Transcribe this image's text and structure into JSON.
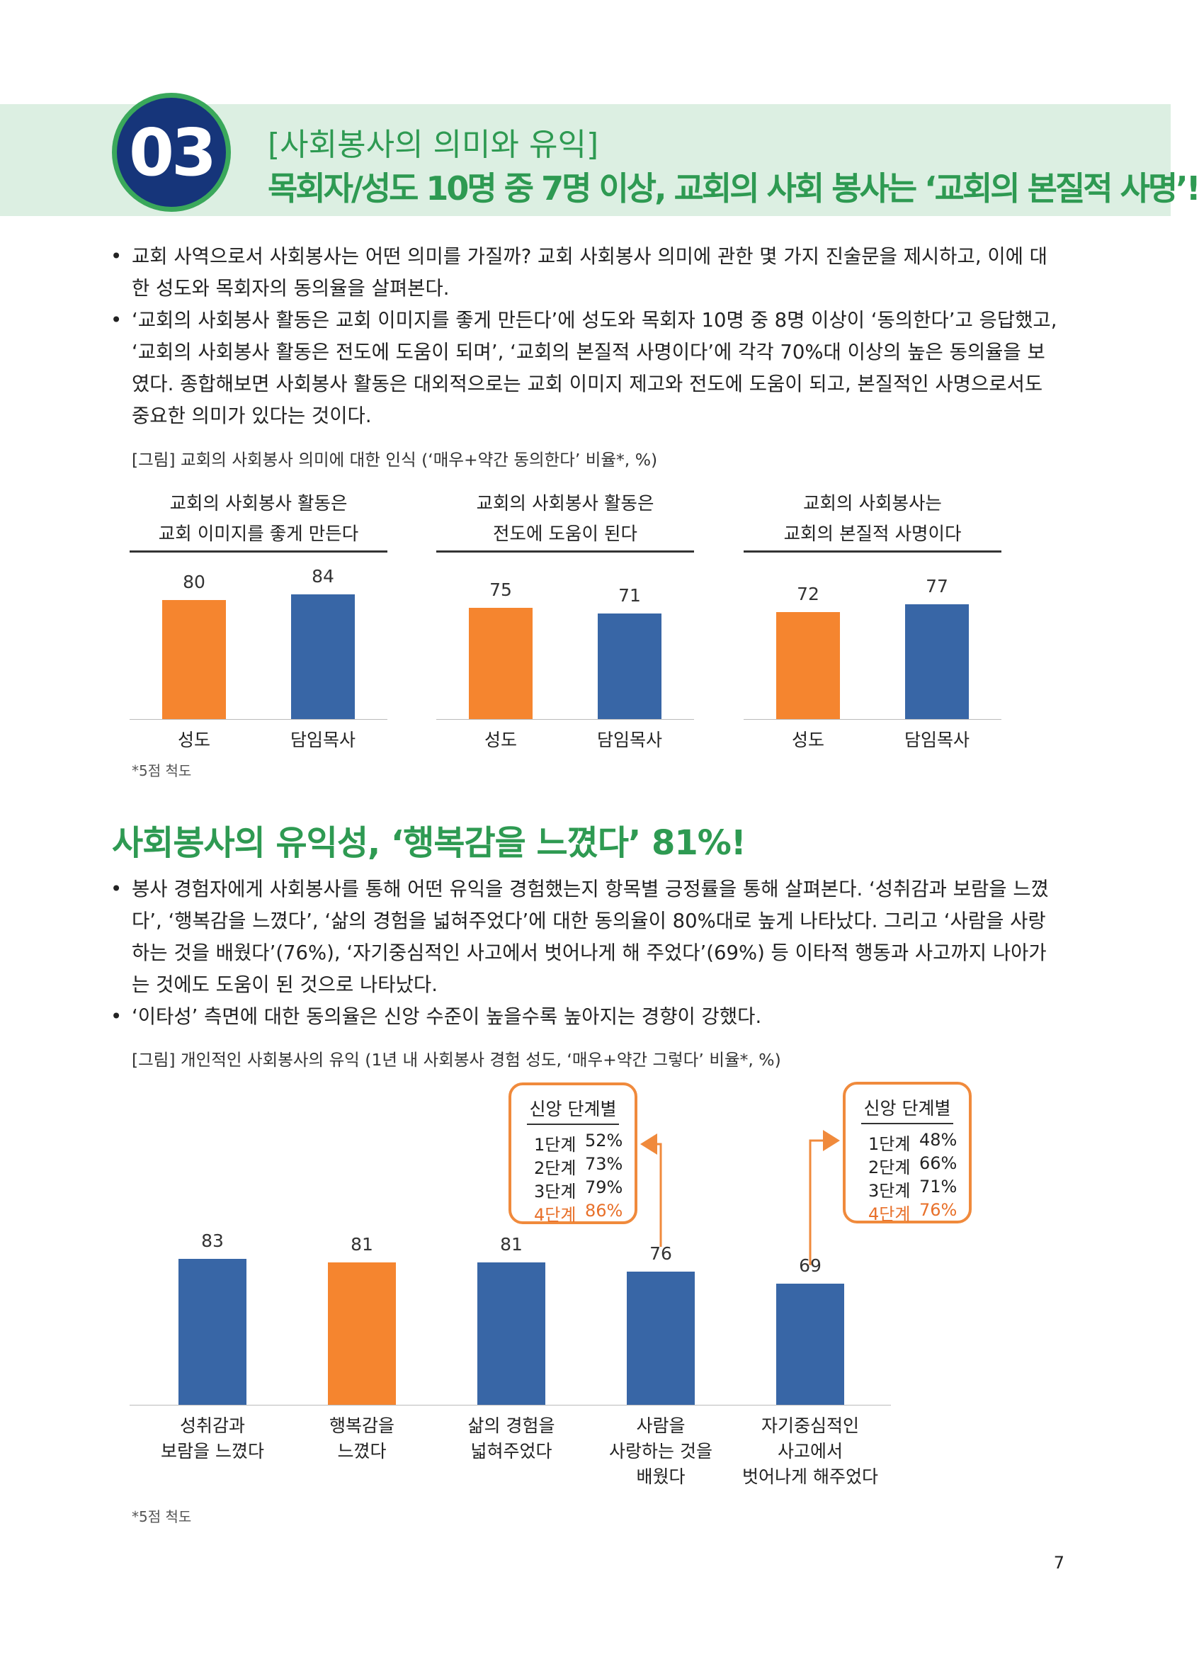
{
  "header": {
    "number": "03",
    "section_title": "[사회봉사의 의미와 유익]",
    "headline": "목회자/성도 10명 중 7명 이상, 교회의 사회 봉사는 ‘교회의 본질적 사명’!"
  },
  "section1": {
    "bullets": [
      "교회 사역으로서 사회봉사는 어떤 의미를 가질까? 교회 사회봉사 의미에 관한 몇 가지 진술문을 제시하고, 이에 대한 성도와 목회자의 동의율을 살펴본다.",
      "‘교회의 사회봉사 활동은 교회 이미지를 좋게 만든다’에 성도와 목회자 10명 중 8명 이상이 ‘동의한다’고 응답했고, ‘교회의 사회봉사 활동은 전도에 도움이 되며’, ‘교회의 본질적 사명이다’에 각각 70%대 이상의 높은 동의율을 보였다. 종합해보면 사회봉사 활동은 대외적으로는 교회 이미지 제고와 전도에 도움이 되고, 본질적인 사명으로서도 중요한 의미가 있다는 것이다."
    ],
    "figure_caption": "[그림] 교회의 사회봉사 의미에 대한 인식 (‘매우+약간 동의한다’ 비율*, %)",
    "footnote": "*5점 척도"
  },
  "section2": {
    "heading": "사회봉사의 유익성, ‘행복감을 느꼈다’ 81%!",
    "bullets": [
      "봉사 경험자에게 사회봉사를 통해 어떤 유익을 경험했는지 항목별 긍정률을 통해 살펴본다. ‘성취감과 보람을 느꼈다’, ‘행복감을 느꼈다’, ‘삶의 경험을 넓혀주었다’에 대한 동의율이 80%대로 높게 나타났다. 그리고 ‘사람을 사랑하는 것을 배웠다’(76%), ‘자기중심적인 사고에서 벗어나게 해 주었다’(69%) 등 이타적 행동과 사고까지 나아가는 것에도 도움이 된 것으로 나타났다.",
      "‘이타성’ 측면에 대한 동의율은 신앙 수준이 높을수록 높아지는 경향이 강했다."
    ],
    "figure_caption": "[그림] 개인적인 사회봉사의 유익 (1년 내 사회봉사 경험 성도, ‘매우+약간 그렇다’ 비율*, %)",
    "footnote": "*5점 척도",
    "callouts": [
      {
        "title": "신앙 단계별",
        "rows": [
          {
            "label": "1단계",
            "value": "52%"
          },
          {
            "label": "2단계",
            "value": "73%"
          },
          {
            "label": "3단계",
            "value": "79%"
          },
          {
            "label": "4단계",
            "value": "86%"
          }
        ]
      },
      {
        "title": "신앙 단계별",
        "rows": [
          {
            "label": "1단계",
            "value": "48%"
          },
          {
            "label": "2단계",
            "value": "66%"
          },
          {
            "label": "3단계",
            "value": "71%"
          },
          {
            "label": "4단계",
            "value": "76%"
          }
        ]
      }
    ]
  },
  "chart_data": [
    {
      "type": "bar",
      "title": "교회의 사회봉사 활동은\n교회 이미지를 좋게 만든다",
      "categories": [
        "성도",
        "담임목사"
      ],
      "values": [
        80,
        84
      ],
      "colors": [
        "#f5852f",
        "#3866a6"
      ]
    },
    {
      "type": "bar",
      "title": "교회의 사회봉사 활동은\n전도에 도움이 된다",
      "categories": [
        "성도",
        "담임목사"
      ],
      "values": [
        75,
        71
      ],
      "colors": [
        "#f5852f",
        "#3866a6"
      ]
    },
    {
      "type": "bar",
      "title": "교회의 사회봉사는\n교회의 본질적 사명이다",
      "categories": [
        "성도",
        "담임목사"
      ],
      "values": [
        72,
        77
      ],
      "colors": [
        "#f5852f",
        "#3866a6"
      ]
    },
    {
      "type": "bar",
      "categories": [
        "성취감과\n보람을 느꼈다",
        "행복감을\n느꼈다",
        "삶의 경험을\n넓혀주었다",
        "사람을\n사랑하는 것을\n배웠다",
        "자기중심적인\n사고에서\n벗어나게 해주었다"
      ],
      "values": [
        83,
        81,
        81,
        76,
        69
      ],
      "colors": [
        "#3866a6",
        "#f5852f",
        "#3866a6",
        "#3866a6",
        "#3866a6"
      ]
    }
  ],
  "page_number": "7"
}
